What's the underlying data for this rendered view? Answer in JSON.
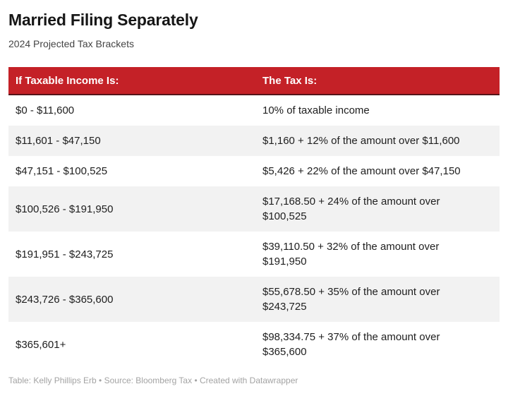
{
  "chart_data": {
    "type": "table",
    "title": "Married Filing Separately",
    "subtitle": "2024 Projected Tax Brackets",
    "columns": [
      "If Taxable Income Is:",
      "The Tax Is:"
    ],
    "rows": [
      {
        "income": "$0 - $11,600",
        "tax": "10% of taxable income"
      },
      {
        "income": "$11,601 - $47,150",
        "tax": "$1,160 + 12% of the amount over $11,600"
      },
      {
        "income": "$47,151 - $100,525",
        "tax": "$5,426 + 22% of the amount over $47,150"
      },
      {
        "income": "$100,526 - $191,950",
        "tax": "$17,168.50 + 24% of the amount over\n$100,525"
      },
      {
        "income": "$191,951 - $243,725",
        "tax": "$39,110.50 + 32% of the amount over\n$191,950"
      },
      {
        "income": "$243,726 - $365,600",
        "tax": "$55,678.50 + 35% of the amount over\n$243,725"
      },
      {
        "income": "$365,601+",
        "tax": "$98,334.75 + 37% of the amount over\n$365,600"
      }
    ],
    "footer": "Table: Kelly Phillips Erb • Source: Bloomberg Tax • Created with Datawrapper",
    "layout": {
      "zebra_striping": true,
      "striped_row_indexes": [
        1,
        3,
        5
      ]
    },
    "colors": {
      "header_bg": "#c42127",
      "header_border": "#571418",
      "header_text": "#ffffff",
      "zebra_row_bg": "#f2f2f2",
      "body_text": "#202020",
      "title_text": "#161616",
      "subtitle_text": "#444444",
      "footer_text": "#a3a3a3"
    }
  }
}
